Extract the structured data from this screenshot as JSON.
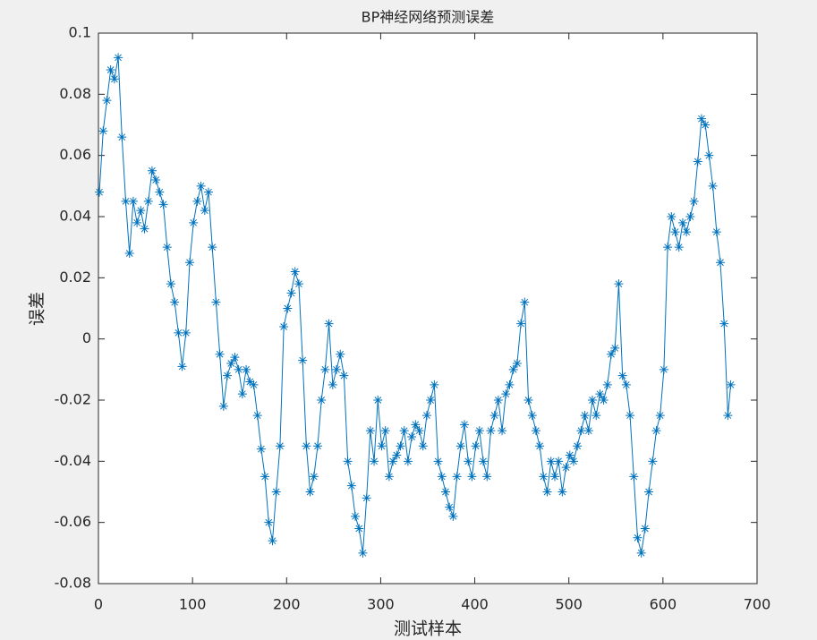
{
  "chart_data": {
    "type": "scatter-line",
    "title": "BP神经网络预测误差",
    "x_label": "测试样本",
    "y_label": "误差",
    "color": "#0072bd",
    "marker": "*",
    "x": [
      1,
      5,
      9,
      13,
      17,
      21,
      25,
      29,
      33,
      37,
      41,
      45,
      49,
      53,
      57,
      61,
      65,
      69,
      73,
      77,
      81,
      85,
      89,
      93,
      97,
      101,
      105,
      109,
      113,
      117,
      121,
      125,
      129,
      133,
      137,
      141,
      145,
      149,
      153,
      157,
      161,
      165,
      169,
      173,
      177,
      181,
      185,
      189,
      193,
      197,
      201,
      205,
      209,
      213,
      217,
      221,
      225,
      229,
      233,
      237,
      241,
      245,
      249,
      253,
      257,
      261,
      265,
      269,
      273,
      277,
      281,
      285,
      289,
      293,
      297,
      301,
      305,
      309,
      313,
      317,
      321,
      325,
      329,
      333,
      337,
      341,
      345,
      349,
      353,
      357,
      361,
      365,
      369,
      373,
      377,
      381,
      385,
      389,
      393,
      397,
      401,
      405,
      409,
      413,
      417,
      421,
      425,
      429,
      433,
      437,
      441,
      445,
      449,
      453,
      457,
      461,
      465,
      469,
      473,
      477,
      481,
      485,
      489,
      493,
      497,
      501,
      505,
      509,
      513,
      517,
      521,
      525,
      529,
      533,
      537,
      541,
      545,
      549,
      553,
      557,
      561,
      565,
      569,
      573,
      577,
      581,
      585,
      589,
      593,
      597,
      601,
      605,
      609,
      613,
      617,
      621,
      625,
      629,
      633,
      637,
      641,
      645,
      649,
      653,
      657,
      661,
      665,
      669,
      672
    ],
    "values": [
      0.048,
      0.068,
      0.078,
      0.088,
      0.085,
      0.092,
      0.066,
      0.045,
      0.028,
      0.045,
      0.038,
      0.042,
      0.036,
      0.045,
      0.055,
      0.052,
      0.048,
      0.044,
      0.03,
      0.018,
      0.012,
      0.002,
      -0.009,
      0.002,
      0.025,
      0.038,
      0.045,
      0.05,
      0.042,
      0.048,
      0.03,
      0.012,
      -0.005,
      -0.022,
      -0.012,
      -0.008,
      -0.006,
      -0.01,
      -0.018,
      -0.01,
      -0.014,
      -0.015,
      -0.025,
      -0.036,
      -0.045,
      -0.06,
      -0.066,
      -0.05,
      -0.035,
      0.004,
      0.01,
      0.015,
      0.022,
      0.018,
      -0.007,
      -0.035,
      -0.05,
      -0.045,
      -0.035,
      -0.02,
      -0.01,
      0.005,
      -0.015,
      -0.01,
      -0.005,
      -0.012,
      -0.04,
      -0.048,
      -0.058,
      -0.062,
      -0.07,
      -0.052,
      -0.03,
      -0.04,
      -0.02,
      -0.035,
      -0.03,
      -0.045,
      -0.04,
      -0.038,
      -0.035,
      -0.03,
      -0.04,
      -0.032,
      -0.028,
      -0.03,
      -0.035,
      -0.025,
      -0.02,
      -0.015,
      -0.04,
      -0.045,
      -0.05,
      -0.055,
      -0.058,
      -0.045,
      -0.035,
      -0.028,
      -0.04,
      -0.045,
      -0.035,
      -0.03,
      -0.04,
      -0.045,
      -0.03,
      -0.025,
      -0.02,
      -0.03,
      -0.018,
      -0.015,
      -0.01,
      -0.008,
      0.005,
      0.012,
      -0.02,
      -0.025,
      -0.03,
      -0.035,
      -0.045,
      -0.05,
      -0.04,
      -0.045,
      -0.04,
      -0.05,
      -0.042,
      -0.038,
      -0.04,
      -0.035,
      -0.03,
      -0.025,
      -0.03,
      -0.02,
      -0.025,
      -0.018,
      -0.02,
      -0.015,
      -0.005,
      -0.003,
      0.018,
      -0.012,
      -0.015,
      -0.025,
      -0.045,
      -0.065,
      -0.07,
      -0.062,
      -0.05,
      -0.04,
      -0.03,
      -0.025,
      -0.01,
      0.03,
      0.04,
      0.035,
      0.03,
      0.038,
      0.035,
      0.04,
      0.045,
      0.058,
      0.072,
      0.07,
      0.06,
      0.05,
      0.035,
      0.025,
      0.005,
      -0.025,
      -0.015
    ],
    "xlim": [
      0,
      700
    ],
    "xticks": [
      0,
      100,
      200,
      300,
      400,
      500,
      600,
      700
    ],
    "ylim": [
      -0.08,
      0.1
    ],
    "yticks": [
      -0.08,
      -0.06,
      -0.04,
      -0.02,
      0,
      0.02,
      0.04,
      0.06,
      0.08,
      0.1
    ]
  }
}
